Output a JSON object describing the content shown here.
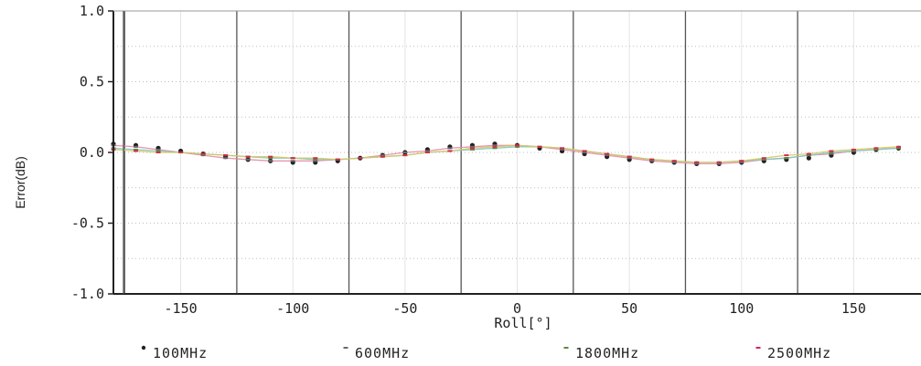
{
  "chart_data": {
    "type": "scatter",
    "xlabel": "Roll[°]",
    "ylabel": "Error(dB)",
    "xlim": [
      -180,
      180
    ],
    "ylim": [
      -1.0,
      1.0
    ],
    "x_ticks": [
      -150,
      -100,
      -50,
      0,
      50,
      100,
      150
    ],
    "y_ticks": [
      1.0,
      0.5,
      0.0,
      -0.5,
      -1.0
    ],
    "grid": true,
    "legend_position": "bottom",
    "x": [
      -180,
      -170,
      -160,
      -150,
      -140,
      -130,
      -120,
      -110,
      -100,
      -90,
      -80,
      -70,
      -60,
      -50,
      -40,
      -30,
      -20,
      -10,
      0,
      10,
      20,
      30,
      40,
      50,
      60,
      70,
      80,
      90,
      100,
      110,
      120,
      130,
      140,
      150,
      160,
      170
    ],
    "series": [
      {
        "name": "100MHz",
        "color": "#222222",
        "values": [
          0.06,
          0.05,
          0.03,
          0.01,
          -0.01,
          -0.03,
          -0.05,
          -0.06,
          -0.07,
          -0.07,
          -0.06,
          -0.04,
          -0.02,
          0.0,
          0.02,
          0.04,
          0.05,
          0.06,
          0.05,
          0.03,
          0.01,
          -0.01,
          -0.03,
          -0.05,
          -0.06,
          -0.07,
          -0.08,
          -0.08,
          -0.07,
          -0.06,
          -0.05,
          -0.04,
          -0.02,
          0.0,
          0.02,
          0.03
        ]
      },
      {
        "name": "600MHz",
        "color": "#6a6a6a",
        "values": [
          0.05,
          0.04,
          0.02,
          0.0,
          -0.02,
          -0.04,
          -0.05,
          -0.06,
          -0.06,
          -0.06,
          -0.05,
          -0.04,
          -0.02,
          0.0,
          0.01,
          0.03,
          0.04,
          0.05,
          0.05,
          0.04,
          0.02,
          0.0,
          -0.02,
          -0.04,
          -0.06,
          -0.07,
          -0.08,
          -0.08,
          -0.07,
          -0.05,
          -0.04,
          -0.02,
          -0.01,
          0.01,
          0.02,
          0.03
        ]
      },
      {
        "name": "1800MHz",
        "color": "#5f8a3a",
        "values": [
          0.03,
          0.02,
          0.01,
          0.0,
          -0.01,
          -0.02,
          -0.03,
          -0.04,
          -0.04,
          -0.05,
          -0.05,
          -0.04,
          -0.03,
          -0.02,
          0.0,
          0.01,
          0.02,
          0.03,
          0.04,
          0.04,
          0.03,
          0.01,
          -0.01,
          -0.03,
          -0.05,
          -0.06,
          -0.07,
          -0.07,
          -0.06,
          -0.05,
          -0.04,
          -0.02,
          0.0,
          0.01,
          0.02,
          0.03
        ]
      },
      {
        "name": "2500MHz",
        "color": "#d02a55",
        "values": [
          0.02,
          0.01,
          0.0,
          0.0,
          -0.01,
          -0.02,
          -0.03,
          -0.03,
          -0.04,
          -0.04,
          -0.05,
          -0.04,
          -0.03,
          -0.02,
          0.0,
          0.01,
          0.03,
          0.04,
          0.05,
          0.04,
          0.03,
          0.01,
          -0.01,
          -0.03,
          -0.05,
          -0.06,
          -0.07,
          -0.07,
          -0.06,
          -0.04,
          -0.02,
          -0.01,
          0.01,
          0.02,
          0.03,
          0.04
        ]
      }
    ],
    "trend_colors": [
      "#e68aa8",
      "#7dc8c8",
      "#d6c85a"
    ],
    "major_vlines": [
      -175,
      -125,
      -75,
      -25,
      25,
      75,
      125
    ]
  }
}
